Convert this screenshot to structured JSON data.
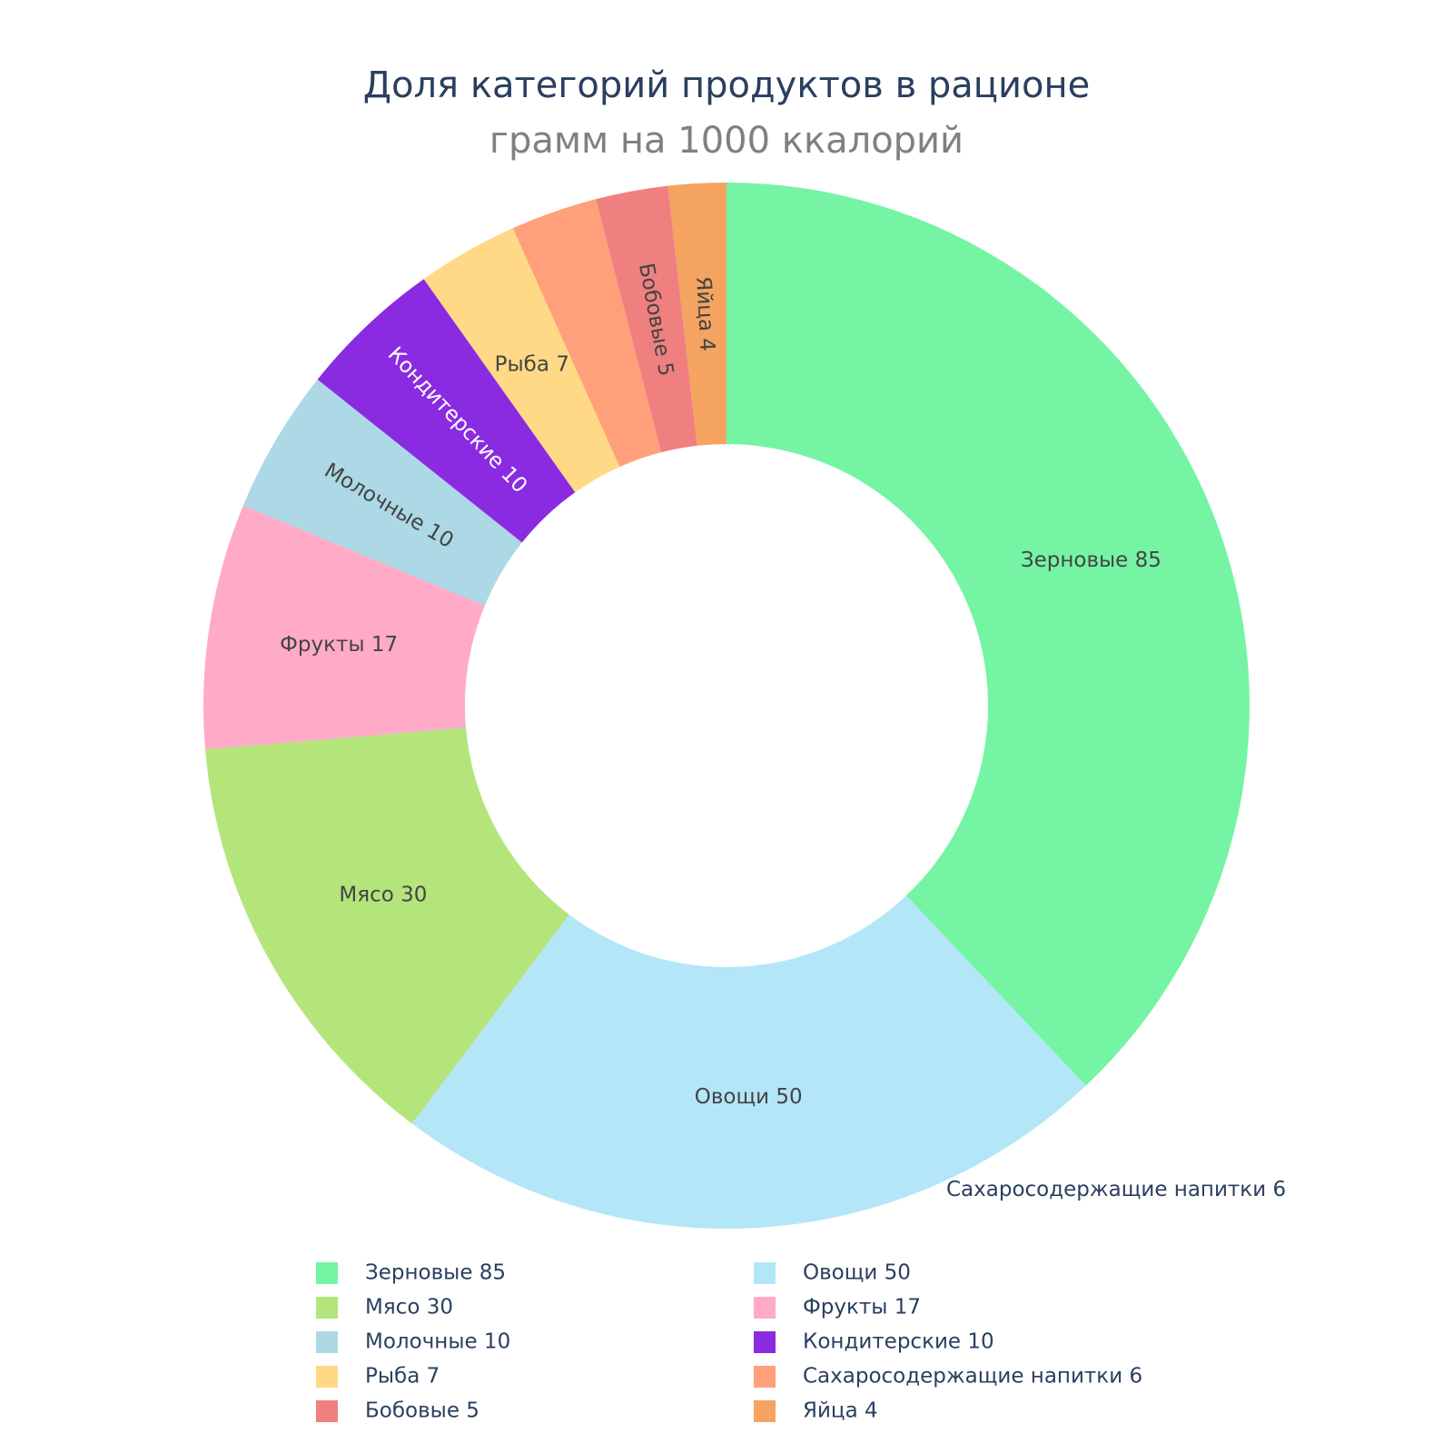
{
  "chart_data": {
    "type": "pie",
    "title": "Доля категорий продуктов в рационе",
    "subtitle": "грамм на 1000 ккалорий",
    "categories": [
      "Зерновые",
      "Овощи",
      "Мясо",
      "Фрукты",
      "Молочные",
      "Кондитерские",
      "Рыба",
      "Сахаросодержащие напитки",
      "Бобовые",
      "Яйца"
    ],
    "values": [
      85,
      50,
      30,
      17,
      10,
      10,
      7,
      6,
      5,
      4
    ],
    "labels": [
      "Зерновые 85",
      "Овощи 50",
      "Мясо 30",
      "Фрукты 17",
      "Молочные 10",
      "Кондитерские 10",
      "Рыба 7",
      "Сахаросодержащие напитки 6",
      "Бобовые 5",
      "Яйца 4"
    ],
    "colors": [
      "#75F4A4",
      "#B3E6F7",
      "#B3E57B",
      "#FFABC7",
      "#ADD8E6",
      "#8A2BE2",
      "#FFD985",
      "#FFA07A",
      "#F08080",
      "#F4A460"
    ],
    "label_colors": [
      "#444444",
      "#444444",
      "#444444",
      "#444444",
      "#444444",
      "#ffffff",
      "#444444",
      "#2a3f5f",
      "#444444",
      "#444444"
    ],
    "hole": 0.5,
    "direction": "clockwise",
    "legend": "bottom, two columns"
  }
}
